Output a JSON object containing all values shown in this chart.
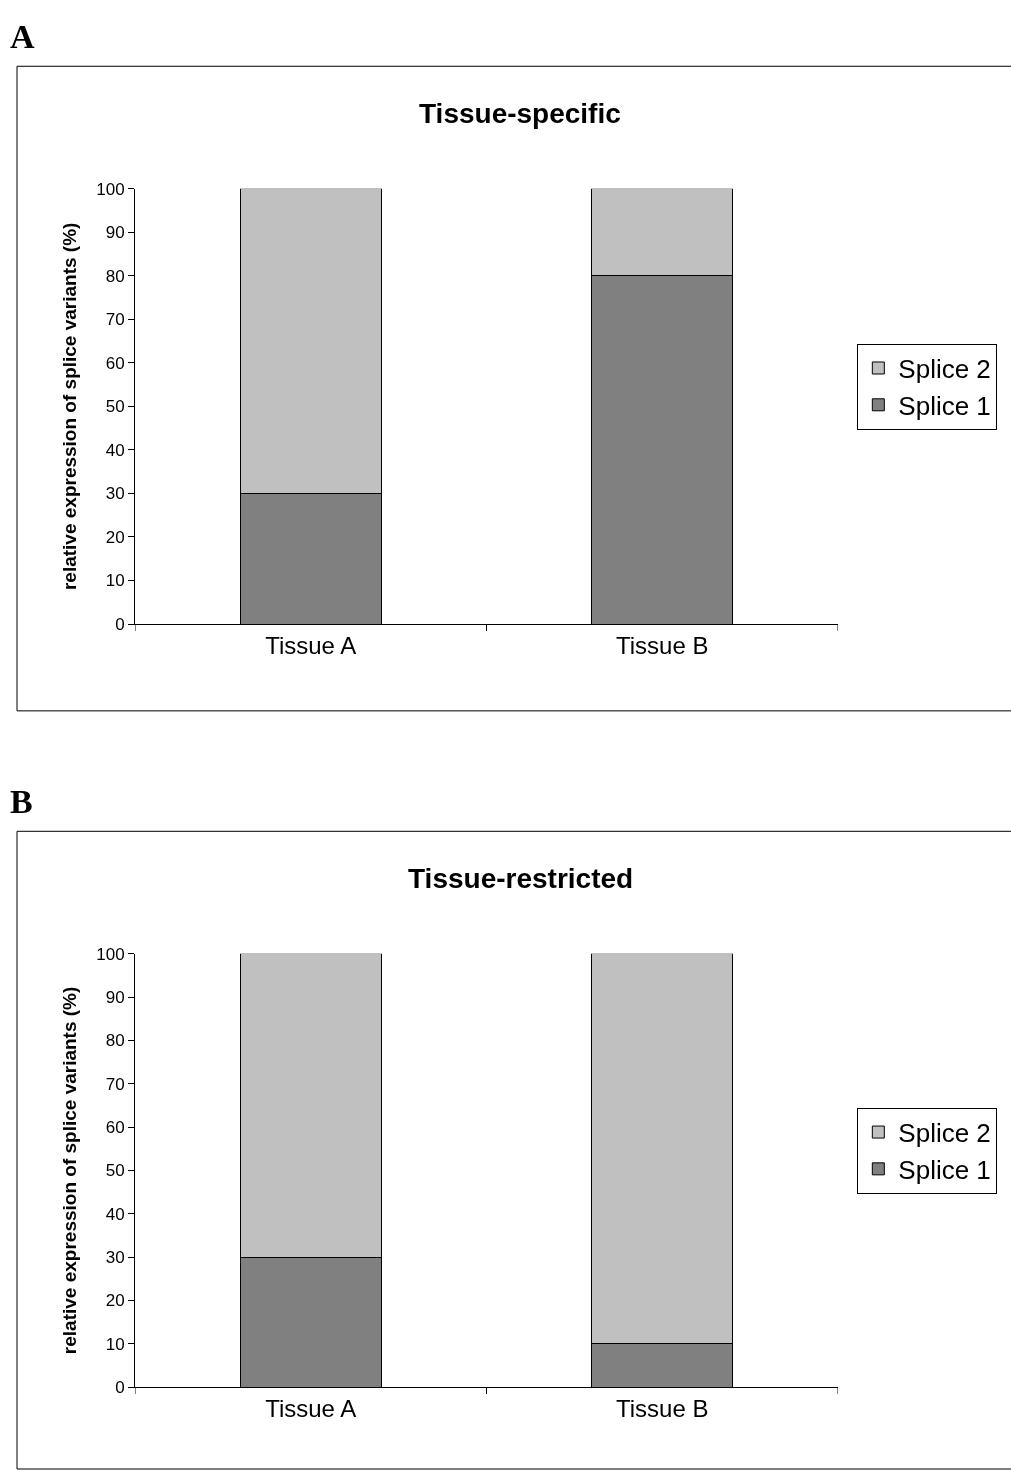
{
  "chart_data": [
    {
      "type": "bar",
      "title": "Tissue-specific",
      "annotations": [
        "A"
      ],
      "ylabel": "relative expression of splice variants (%)",
      "categories": [
        "Tissue A",
        "Tissue B"
      ],
      "stacked": true,
      "ylim": [
        0,
        100
      ],
      "yticks": [
        0,
        10,
        20,
        30,
        40,
        50,
        60,
        70,
        80,
        90,
        100
      ],
      "legend": "right",
      "series": [
        {
          "name": "Splice 1",
          "color": "#808080",
          "values": [
            30,
            80
          ]
        },
        {
          "name": "Splice 2",
          "color": "#c0c0c0",
          "values": [
            70,
            20
          ]
        }
      ]
    },
    {
      "type": "bar",
      "title": "Tissue-restricted",
      "annotations": [
        "B"
      ],
      "ylabel": "relative expression of splice variants (%)",
      "categories": [
        "Tissue A",
        "Tissue B"
      ],
      "stacked": true,
      "ylim": [
        0,
        100
      ],
      "yticks": [
        0,
        10,
        20,
        30,
        40,
        50,
        60,
        70,
        80,
        90,
        100
      ],
      "legend": "right",
      "series": [
        {
          "name": "Splice 1",
          "color": "#808080",
          "values": [
            30,
            10
          ]
        },
        {
          "name": "Splice 2",
          "color": "#c0c0c0",
          "values": [
            70,
            90
          ]
        }
      ]
    }
  ]
}
